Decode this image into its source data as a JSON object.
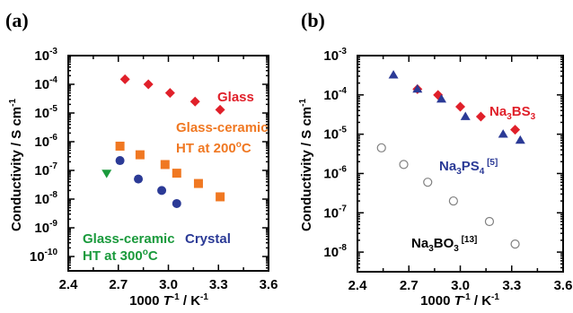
{
  "panels": [
    {
      "label": "(a)",
      "ylabel": "Conductivity / S cm",
      "ylabel_sup": "-1",
      "xlabel_prefix": "1000 ",
      "xlabel_T": "T",
      "xlabel_T_sup": "-1",
      "xlabel_mid": " / K",
      "xlabel_K_sup": "-1"
    },
    {
      "label": "(b)",
      "ylabel": "Conductivity / S cm",
      "ylabel_sup": "-1",
      "xlabel_prefix": "1000 ",
      "xlabel_T": "T",
      "xlabel_T_sup": "-1",
      "xlabel_mid": " / K",
      "xlabel_K_sup": "-1"
    }
  ],
  "chart_data": [
    {
      "type": "scatter",
      "panel": "(a)",
      "xlabel": "1000 T^-1 / K^-1",
      "ylabel": "Conductivity / S cm^-1",
      "xlim": [
        2.4,
        3.6
      ],
      "ylim_log10": [
        -10.5,
        -3
      ],
      "yscale": "log",
      "x_ticks": [
        "2.4",
        "2.7",
        "3.0",
        "3.3",
        "3.6"
      ],
      "x_tick_values": [
        2.4,
        2.7,
        3.0,
        3.3,
        3.6
      ],
      "y_tick_exponents": [
        -3,
        -4,
        -5,
        -6,
        -7,
        -8,
        -9,
        -10
      ],
      "y_tick_base": "10",
      "series": [
        {
          "name": "Glass",
          "marker": "diamond",
          "color": "#e0202a",
          "points": [
            [
              2.74,
              0.00015
            ],
            [
              2.88,
              0.0001
            ],
            [
              3.01,
              5e-05
            ],
            [
              3.16,
              2.5e-05
            ],
            [
              3.31,
              1.3e-05
            ]
          ],
          "annotation": [
            "Glass"
          ]
        },
        {
          "name": "Glass-ceramic HT at 200oC",
          "marker": "square",
          "color": "#f07822",
          "points": [
            [
              2.71,
              7e-07
            ],
            [
              2.83,
              3.5e-07
            ],
            [
              2.98,
              1.6e-07
            ],
            [
              3.05,
              8e-08
            ],
            [
              3.18,
              3.5e-08
            ],
            [
              3.31,
              1.2e-08
            ]
          ],
          "annotation": [
            "Glass-ceramic",
            "HT at 200",
            "o",
            "C"
          ]
        },
        {
          "name": "Glass-ceramic HT at 300oC",
          "marker": "triangle-down",
          "color": "#1a9a3c",
          "points": [
            [
              2.63,
              8e-08
            ]
          ],
          "annotation": [
            "Glass-ceramic",
            "HT at 300",
            "o",
            "C"
          ]
        },
        {
          "name": "Crystal",
          "marker": "circle",
          "color": "#2b3a96",
          "points": [
            [
              2.71,
              2.2e-07
            ],
            [
              2.82,
              5e-08
            ],
            [
              2.96,
              2e-08
            ],
            [
              3.05,
              7e-09
            ]
          ],
          "annotation": [
            "Crystal"
          ]
        }
      ]
    },
    {
      "type": "scatter",
      "panel": "(b)",
      "xlabel": "1000 T^-1 / K^-1",
      "ylabel": "Conductivity / S cm^-1",
      "xlim": [
        2.4,
        3.6
      ],
      "ylim_log10": [
        -8.5,
        -3
      ],
      "yscale": "log",
      "x_ticks": [
        "2.4",
        "2.7",
        "3.0",
        "3.3",
        "3.6"
      ],
      "x_tick_values": [
        2.4,
        2.7,
        3.0,
        3.3,
        3.6
      ],
      "y_tick_exponents": [
        -3,
        -4,
        -5,
        -6,
        -7,
        -8
      ],
      "y_tick_base": "10",
      "series": [
        {
          "name": "Na3BS3",
          "marker": "diamond",
          "color": "#e0202a",
          "points": [
            [
              2.75,
              0.00014
            ],
            [
              2.87,
              0.0001
            ],
            [
              3.0,
              5e-05
            ],
            [
              3.12,
              2.8e-05
            ],
            [
              3.32,
              1.3e-05
            ]
          ],
          "annotation": [
            "Na",
            "3",
            "BS",
            "3"
          ]
        },
        {
          "name": "Na3PS4 [5]",
          "marker": "triangle-up",
          "color": "#2b3a96",
          "points": [
            [
              2.61,
              0.00032
            ],
            [
              2.75,
              0.00014
            ],
            [
              2.89,
              7.8e-05
            ],
            [
              3.03,
              2.8e-05
            ],
            [
              3.25,
              1e-05
            ],
            [
              3.35,
              7e-06
            ]
          ],
          "annotation": [
            "Na",
            "3",
            "PS",
            "4",
            " [5]"
          ]
        },
        {
          "name": "Na3BO3 [13]",
          "marker": "circle-open",
          "color": "#808080",
          "points": [
            [
              2.54,
              4.5e-06
            ],
            [
              2.67,
              1.7e-06
            ],
            [
              2.81,
              6e-07
            ],
            [
              2.96,
              2e-07
            ],
            [
              3.17,
              6e-08
            ],
            [
              3.32,
              1.6e-08
            ]
          ],
          "annotation": [
            "Na",
            "3",
            "BO",
            "3",
            " [13]"
          ]
        }
      ]
    }
  ]
}
